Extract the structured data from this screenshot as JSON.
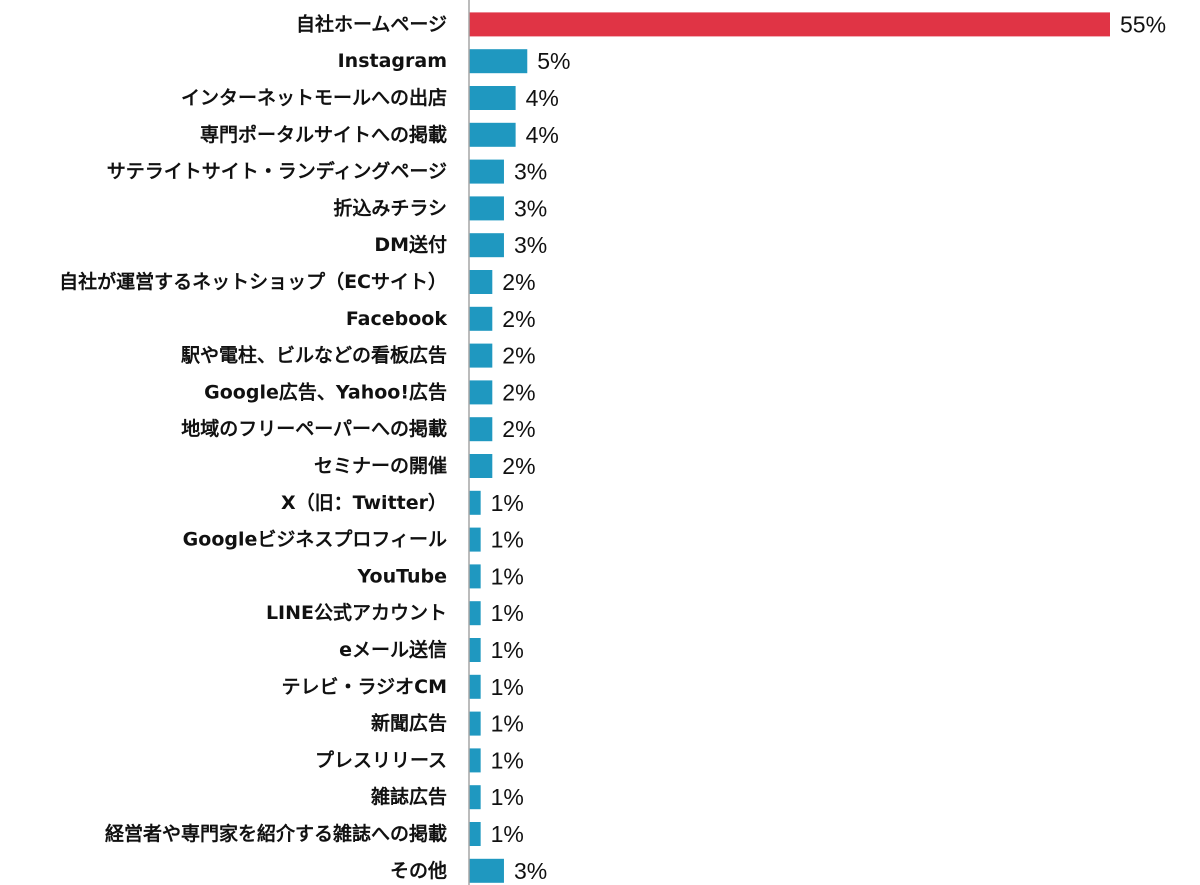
{
  "chart_data": {
    "type": "bar",
    "orientation": "horizontal",
    "title": "",
    "xlabel": "",
    "ylabel": "",
    "xlim": [
      0,
      55
    ],
    "grid": false,
    "legend": "none",
    "highlight_color": "#e03445",
    "bar_color": "#1f98c0",
    "categories": [
      "自社ホームページ",
      "Instagram",
      "インターネットモールへの出店",
      "専門ポータルサイトへの掲載",
      "サテライトサイト・ランディングページ",
      "折込みチラシ",
      "DM送付",
      "自社が運営するネットショップ（ECサイト）",
      "Facebook",
      "駅や電柱、ビルなどの看板広告",
      "Google広告、Yahoo!広告",
      "地域のフリーペーパーへの掲載",
      "セミナーの開催",
      "X（旧：Twitter）",
      "Googleビジネスプロフィール",
      "YouTube",
      "LINE公式アカウント",
      "eメール送信",
      "テレビ・ラジオCM",
      "新聞広告",
      "プレスリリース",
      "雑誌広告",
      "経営者や専門家を紹介する雑誌への掲載",
      "その他"
    ],
    "values": [
      55,
      5,
      4,
      4,
      3,
      3,
      3,
      2,
      2,
      2,
      2,
      2,
      2,
      1,
      1,
      1,
      1,
      1,
      1,
      1,
      1,
      1,
      1,
      3
    ],
    "value_labels": [
      "55%",
      "5%",
      "4%",
      "4%",
      "3%",
      "3%",
      "3%",
      "2%",
      "2%",
      "2%",
      "2%",
      "2%",
      "2%",
      "1%",
      "1%",
      "1%",
      "1%",
      "1%",
      "1%",
      "1%",
      "1%",
      "1%",
      "1%",
      "3%"
    ],
    "highlight_index": 0
  }
}
